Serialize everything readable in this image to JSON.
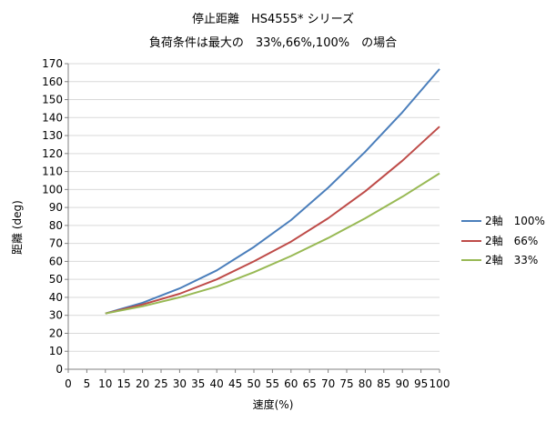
{
  "chart_data": {
    "type": "line",
    "title": "停止距離　HS4555* シリーズ",
    "subtitle": "負荷条件は最大の　33%,66%,100%　の場合",
    "xlabel": "速度(%)",
    "ylabel": "距離 (deg)",
    "xlim": [
      0,
      100
    ],
    "ylim": [
      0,
      170
    ],
    "x_ticks": [
      "0",
      "5",
      "10",
      "15",
      "20",
      "25",
      "30",
      "35",
      "40",
      "45",
      "50",
      "55",
      "60",
      "65",
      "70",
      "75",
      "80",
      "85",
      "90",
      "95",
      "100"
    ],
    "y_ticks": [
      "0",
      "10",
      "20",
      "30",
      "40",
      "50",
      "60",
      "70",
      "80",
      "90",
      "100",
      "110",
      "120",
      "130",
      "140",
      "150",
      "160",
      "170"
    ],
    "grid": "horizontal",
    "legend_position": "right",
    "x": [
      10,
      20,
      30,
      40,
      50,
      60,
      70,
      80,
      90,
      100
    ],
    "series": [
      {
        "name": "2軸　100%",
        "color": "#4a7ebb",
        "values": [
          31,
          37,
          45,
          55,
          68,
          83,
          101,
          121,
          143,
          167
        ]
      },
      {
        "name": "2軸　66%",
        "color": "#be4b48",
        "values": [
          31,
          36,
          42,
          50,
          60,
          71,
          84,
          99,
          116,
          135
        ]
      },
      {
        "name": "2軸　33%",
        "color": "#98b954",
        "values": [
          31,
          35,
          40,
          46,
          54,
          63,
          73,
          84,
          96,
          109
        ]
      }
    ]
  }
}
